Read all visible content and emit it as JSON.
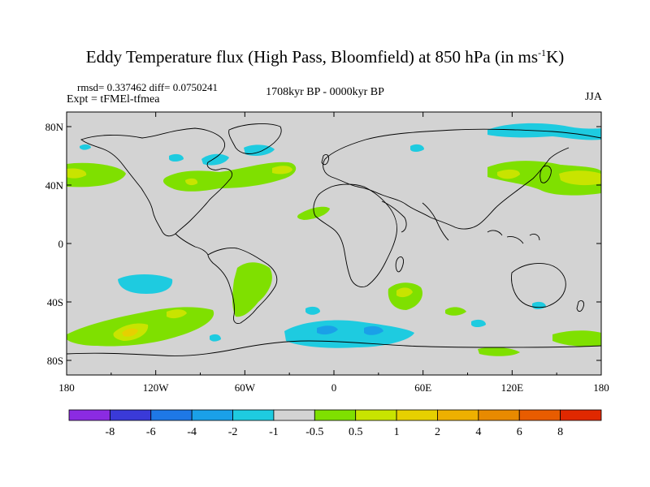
{
  "title": {
    "main": "Eddy Temperature flux (High Pass, Bloomfield) at 850 hPa (in ms",
    "unit_sup": "-1",
    "unit_end": "K)"
  },
  "stats": "rmsd= 0.337462 diff= 0.0750241",
  "expt": "Expt = tFMEl-tfmea",
  "period": "1708kyr BP - 0000kyr BP",
  "season": "JJA",
  "map": {
    "projection": "cylindrical-equidistant",
    "lon_range": [
      -180,
      180
    ],
    "lat_range": [
      -90,
      90
    ],
    "background_color": "#d3d3d3",
    "coastline_color": "#000000",
    "y_ticks": [
      "80N",
      "40N",
      "0",
      "40S",
      "80S"
    ],
    "x_ticks": [
      "180",
      "120W",
      "60W",
      "0",
      "60E",
      "120E",
      "180"
    ]
  },
  "colorbar": {
    "colors": [
      "#8b2be2",
      "#3a3ad8",
      "#1e78e6",
      "#1aa0e8",
      "#1ecbe0",
      "#d3d3d3",
      "#7fe000",
      "#c8e400",
      "#e6d000",
      "#eeb000",
      "#e88a00",
      "#e85c00",
      "#e02800"
    ],
    "labels": [
      "-8",
      "-6",
      "-4",
      "-2",
      "-1",
      "-0.5",
      "0.5",
      "1",
      "2",
      "4",
      "6",
      "8"
    ]
  }
}
